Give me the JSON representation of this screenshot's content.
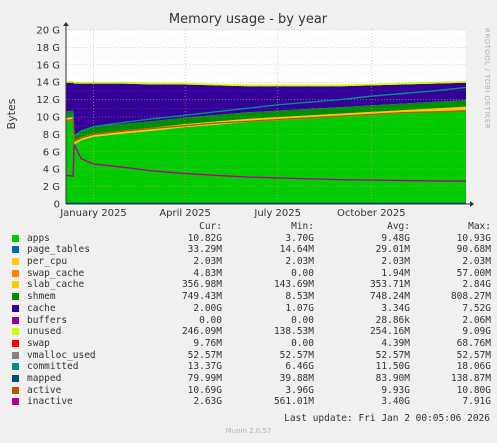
{
  "chart_data": {
    "type": "area",
    "title": "Memory usage - by year",
    "ylabel": "Bytes",
    "ylim": [
      0,
      20
    ],
    "yunit": "G",
    "yticks": [
      "0",
      "2 G",
      "4 G",
      "6 G",
      "8 G",
      "10 G",
      "12 G",
      "14 G",
      "16 G",
      "18 G",
      "20 G"
    ],
    "xrange": [
      "2024-12-05",
      "2026-01-02"
    ],
    "xticks": [
      {
        "date": "2025-01-01",
        "label": "January 2025"
      },
      {
        "date": "2025-04-01",
        "label": "April 2025"
      },
      {
        "date": "2025-07-01",
        "label": "July 2025"
      },
      {
        "date": "2025-10-01",
        "label": "October 2025"
      }
    ],
    "grid": true,
    "x": [
      "2024-12-05",
      "2024-12-12",
      "2024-12-13",
      "2024-12-20",
      "2025-01-01",
      "2025-02-01",
      "2025-03-01",
      "2025-04-01",
      "2025-05-01",
      "2025-06-01",
      "2025-07-01",
      "2025-08-01",
      "2025-09-01",
      "2025-10-01",
      "2025-11-01",
      "2025-12-01",
      "2026-01-02"
    ],
    "series": [
      {
        "name": "apps",
        "color": "#00cc00",
        "stacked": true,
        "values": [
          9.5,
          9.6,
          6.8,
          7.3,
          7.7,
          8.1,
          8.4,
          8.8,
          9.1,
          9.4,
          9.6,
          9.8,
          10.0,
          10.2,
          10.4,
          10.6,
          10.8
        ]
      },
      {
        "name": "page_tables",
        "color": "#0066b3",
        "stacked": true,
        "values": [
          0.03,
          0.03,
          0.03,
          0.03,
          0.03,
          0.03,
          0.03,
          0.03,
          0.03,
          0.03,
          0.03,
          0.03,
          0.03,
          0.03,
          0.03,
          0.03,
          0.03
        ]
      },
      {
        "name": "per_cpu",
        "color": "#ffcc00",
        "stacked": true,
        "values": [
          0.002,
          0.002,
          0.002,
          0.002,
          0.002,
          0.002,
          0.002,
          0.002,
          0.002,
          0.002,
          0.002,
          0.002,
          0.002,
          0.002,
          0.002,
          0.002,
          0.002
        ]
      },
      {
        "name": "swap_cache",
        "color": "#ff8000",
        "stacked": true,
        "values": [
          0.002,
          0.002,
          0.002,
          0.002,
          0.002,
          0.002,
          0.002,
          0.002,
          0.002,
          0.002,
          0.002,
          0.002,
          0.002,
          0.002,
          0.002,
          0.002,
          0.005
        ]
      },
      {
        "name": "slab_cache",
        "color": "#ffcc00",
        "stacked": true,
        "values": [
          0.35,
          0.35,
          0.35,
          0.35,
          0.35,
          0.35,
          0.35,
          0.35,
          0.35,
          0.35,
          0.35,
          0.35,
          0.35,
          0.35,
          0.35,
          0.35,
          0.35
        ]
      },
      {
        "name": "shmem",
        "color": "#008f00",
        "stacked": true,
        "values": [
          0.75,
          0.75,
          0.75,
          0.75,
          0.75,
          0.75,
          0.75,
          0.75,
          0.75,
          0.75,
          0.75,
          0.75,
          0.75,
          0.75,
          0.75,
          0.75,
          0.75
        ]
      },
      {
        "name": "cache",
        "color": "#330099",
        "stacked": true,
        "values": [
          3.3,
          3.2,
          5.9,
          5.4,
          5.0,
          4.6,
          4.2,
          3.8,
          3.4,
          3.0,
          2.8,
          2.6,
          2.4,
          2.3,
          2.2,
          2.1,
          2.0
        ]
      },
      {
        "name": "buffers",
        "color": "#990099",
        "stacked": true,
        "values": [
          0,
          0,
          0,
          0,
          0,
          0,
          0,
          0,
          0,
          0,
          0,
          0,
          0,
          0,
          0,
          0,
          0
        ]
      },
      {
        "name": "unused",
        "color": "#ccff00",
        "stacked": true,
        "values": [
          0.2,
          0.2,
          0.2,
          0.2,
          0.2,
          0.2,
          0.2,
          0.2,
          0.2,
          0.2,
          0.2,
          0.2,
          0.2,
          0.2,
          0.2,
          0.2,
          0.2
        ]
      },
      {
        "name": "swap",
        "color": "#ff0000",
        "stacked": false,
        "values": [
          0,
          0,
          0,
          0,
          0,
          0,
          0,
          0,
          0,
          0,
          0,
          0,
          0,
          0,
          0,
          0,
          0
        ]
      },
      {
        "name": "vmalloc_used",
        "color": "#808080",
        "stacked": false,
        "values": [
          0.05,
          0.05,
          0.05,
          0.05,
          0.05,
          0.05,
          0.05,
          0.05,
          0.05,
          0.05,
          0.05,
          0.05,
          0.05,
          0.05,
          0.05,
          0.05,
          0.05
        ]
      },
      {
        "name": "committed",
        "color": "#008f8f",
        "stacked": false,
        "values": [
          10.2,
          10.3,
          7.8,
          8.4,
          8.9,
          9.4,
          9.8,
          10.2,
          10.6,
          11.0,
          11.4,
          11.7,
          12.0,
          12.4,
          12.7,
          13.0,
          13.4
        ]
      },
      {
        "name": "mapped",
        "color": "#00487d",
        "stacked": false,
        "values": [
          0.08,
          0.08,
          0.08,
          0.08,
          0.08,
          0.08,
          0.08,
          0.08,
          0.08,
          0.08,
          0.08,
          0.08,
          0.08,
          0.08,
          0.08,
          0.08,
          0.08
        ]
      },
      {
        "name": "active",
        "color": "#b35a00",
        "stacked": false,
        "values": [
          9.6,
          9.7,
          7.2,
          7.6,
          8.0,
          8.4,
          8.7,
          9.0,
          9.3,
          9.5,
          9.7,
          9.9,
          10.1,
          10.3,
          10.5,
          10.6,
          10.7
        ]
      },
      {
        "name": "inactive",
        "color": "#b3008f",
        "stacked": false,
        "values": [
          3.3,
          3.2,
          6.8,
          5.2,
          4.6,
          4.2,
          3.8,
          3.5,
          3.3,
          3.1,
          3.0,
          2.9,
          2.8,
          2.75,
          2.7,
          2.65,
          2.63
        ]
      }
    ],
    "plot_background": "#ffffff",
    "canvas_background": "#f0f0f0",
    "grid_color": "#ff8888"
  },
  "watermark": "RRDTOOL / TOBI OETIKER",
  "legend": {
    "headers": [
      "Cur:",
      "Min:",
      "Avg:",
      "Max:"
    ],
    "rows": [
      {
        "name": "apps",
        "color": "#00cc00",
        "cur": "10.82G",
        "min": "3.70G",
        "avg": "9.48G",
        "max": "10.93G"
      },
      {
        "name": "page_tables",
        "color": "#0066b3",
        "cur": "33.29M",
        "min": "14.64M",
        "avg": "29.01M",
        "max": "90.68M"
      },
      {
        "name": "per_cpu",
        "color": "#ffcc00",
        "cur": "2.03M",
        "min": "2.03M",
        "avg": "2.03M",
        "max": "2.03M"
      },
      {
        "name": "swap_cache",
        "color": "#ff8000",
        "cur": "4.83M",
        "min": "0.00",
        "avg": "1.94M",
        "max": "57.00M"
      },
      {
        "name": "slab_cache",
        "color": "#ffcc00",
        "cur": "356.98M",
        "min": "143.69M",
        "avg": "353.71M",
        "max": "2.84G"
      },
      {
        "name": "shmem",
        "color": "#008f00",
        "cur": "749.43M",
        "min": "8.53M",
        "avg": "748.24M",
        "max": "808.27M"
      },
      {
        "name": "cache",
        "color": "#330099",
        "cur": "2.00G",
        "min": "1.07G",
        "avg": "3.34G",
        "max": "7.52G"
      },
      {
        "name": "buffers",
        "color": "#990099",
        "cur": "0.00",
        "min": "0.00",
        "avg": "28.86k",
        "max": "2.06M"
      },
      {
        "name": "unused",
        "color": "#ccff00",
        "cur": "246.09M",
        "min": "138.53M",
        "avg": "254.16M",
        "max": "9.09G"
      },
      {
        "name": "swap",
        "color": "#ff0000",
        "cur": "9.76M",
        "min": "0.00",
        "avg": "4.39M",
        "max": "68.76M"
      },
      {
        "name": "vmalloc_used",
        "color": "#808080",
        "cur": "52.57M",
        "min": "52.57M",
        "avg": "52.57M",
        "max": "52.57M"
      },
      {
        "name": "committed",
        "color": "#008f8f",
        "cur": "13.37G",
        "min": "6.46G",
        "avg": "11.50G",
        "max": "18.06G"
      },
      {
        "name": "mapped",
        "color": "#00487d",
        "cur": "79.99M",
        "min": "39.88M",
        "avg": "83.90M",
        "max": "138.87M"
      },
      {
        "name": "active",
        "color": "#b35a00",
        "cur": "10.69G",
        "min": "3.96G",
        "avg": "9.93G",
        "max": "10.80G"
      },
      {
        "name": "inactive",
        "color": "#b3008f",
        "cur": "2.63G",
        "min": "561.01M",
        "avg": "3.40G",
        "max": "7.91G"
      }
    ]
  },
  "footer": {
    "last_update": "Last update: Fri Jan  2 00:05:06 2026",
    "version": "Munin 2.0.57"
  }
}
